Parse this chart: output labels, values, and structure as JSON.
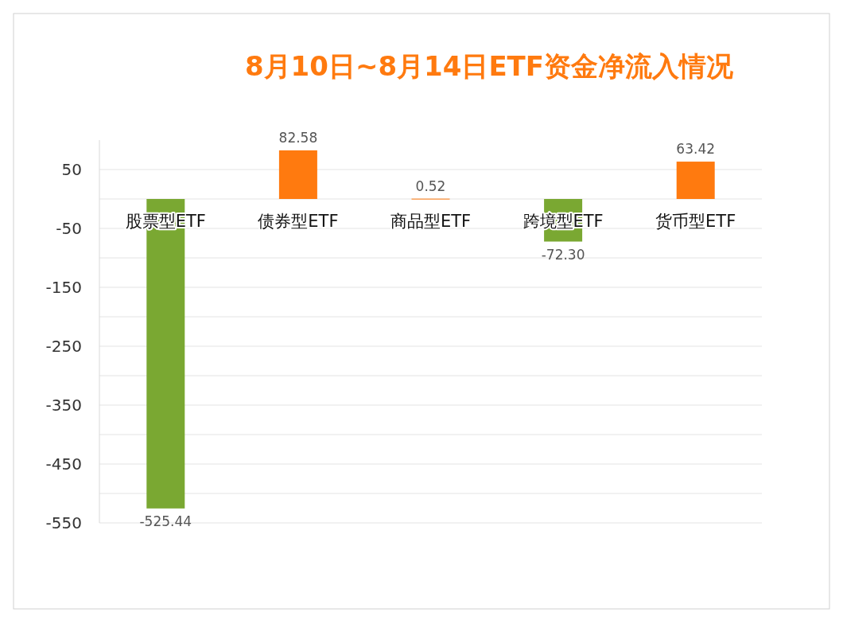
{
  "chart_data": {
    "type": "bar",
    "title": "8月10日~8月14日ETF资金净流入情况",
    "categories": [
      "股票型ETF",
      "债券型ETF",
      "商品型ETF",
      "跨境型ETF",
      "货币型ETF"
    ],
    "values": [
      -525.44,
      82.58,
      0.52,
      -72.3,
      63.42
    ],
    "value_labels": [
      "-525.44",
      "82.58",
      "0.52",
      "-72.30",
      "63.42"
    ],
    "colors": [
      "#7aa832",
      "#ff7a0f",
      "#ff7a0f",
      "#7aa832",
      "#ff7a0f"
    ],
    "ylim": [
      -550,
      100
    ],
    "yticks": [
      50,
      {
        "value": 0,
        "label": null
      },
      -50,
      {
        "value": -100,
        "label": null
      },
      -150,
      {
        "value": -200,
        "label": null
      },
      -250,
      {
        "value": -300,
        "label": null
      },
      -350,
      {
        "value": -400,
        "label": null
      },
      -450,
      {
        "value": -500,
        "label": null
      },
      -550
    ],
    "grid": "y"
  }
}
